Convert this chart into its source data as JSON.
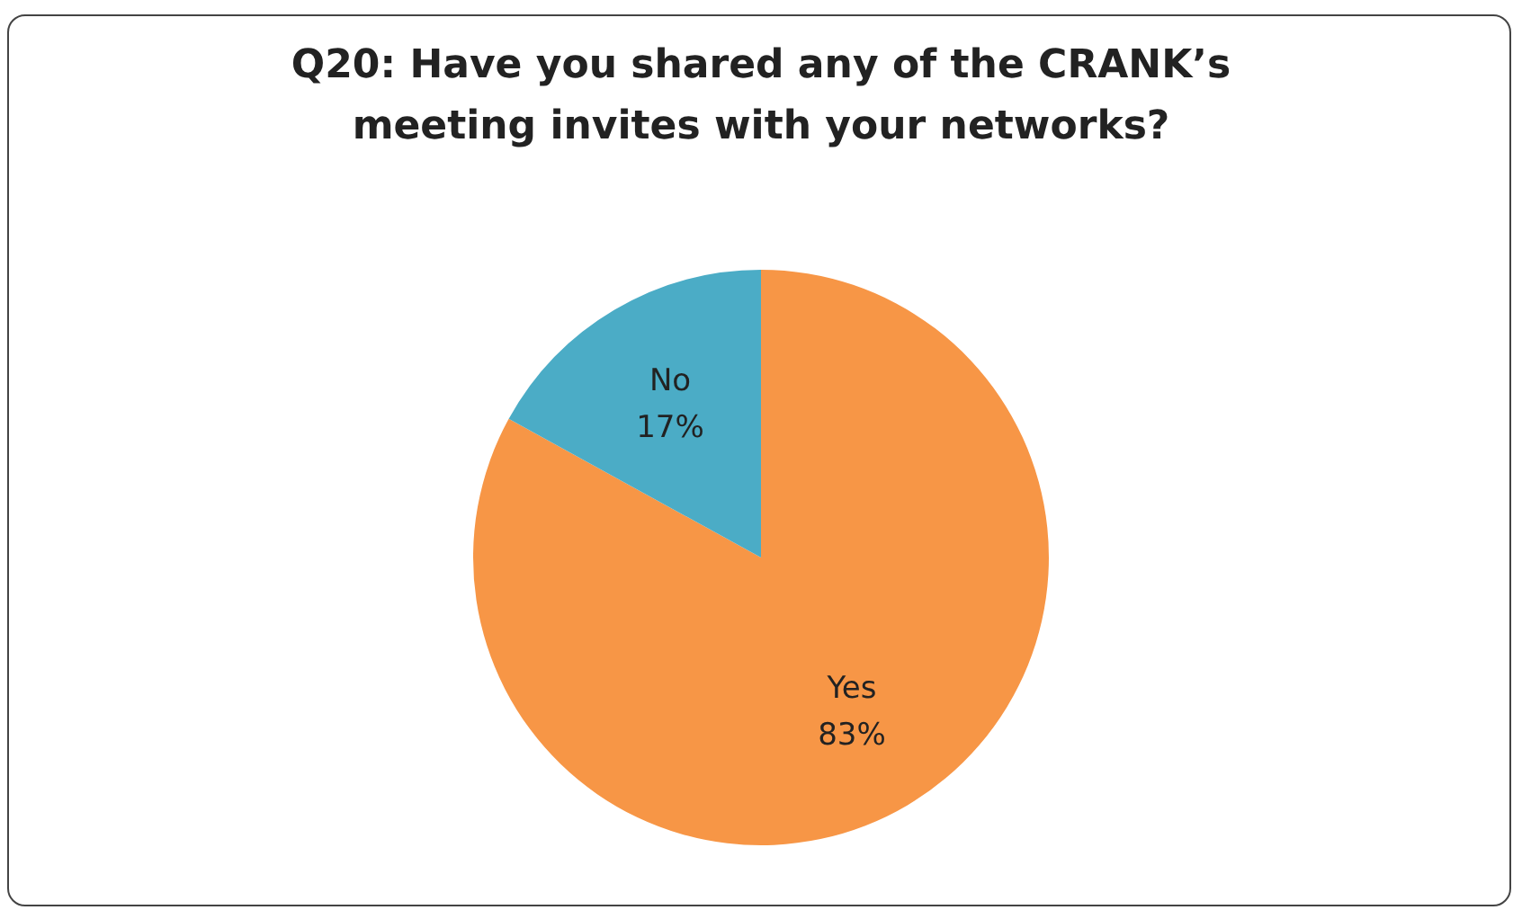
{
  "chart_data": {
    "type": "pie",
    "title": "Q20: Have you shared any of the CRANK’s meeting invites with your networks?",
    "categories": [
      "Yes",
      "No"
    ],
    "values": [
      83,
      17
    ],
    "colors": [
      "#f79646",
      "#4bacc6"
    ],
    "value_labels": [
      "83%",
      "17%"
    ],
    "legend": false
  }
}
